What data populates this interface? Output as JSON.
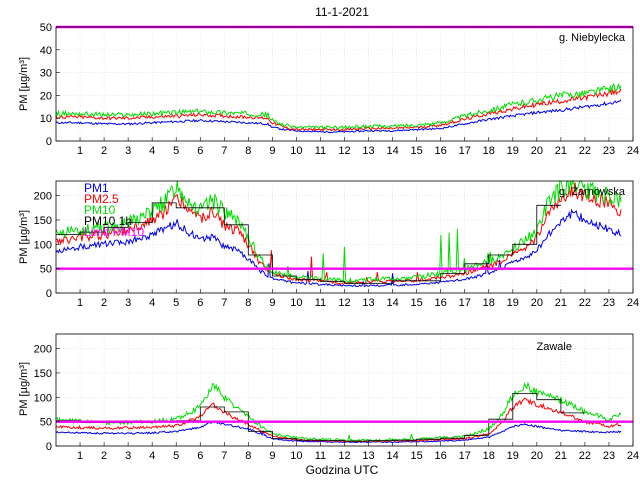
{
  "figure": {
    "title": "11-1-2021",
    "xlabel": "Godzina UTC"
  },
  "chart_data": [
    {
      "type": "line",
      "title": "g. Niebylecka",
      "ylabel": "PM [µg/m³]",
      "xlim": [
        0,
        24
      ],
      "ylim": [
        0,
        50
      ],
      "yticks": [
        0,
        10,
        20,
        30,
        40,
        50
      ],
      "xticks": [
        1,
        2,
        3,
        4,
        5,
        6,
        7,
        8,
        9,
        10,
        11,
        12,
        13,
        14,
        15,
        16,
        17,
        18,
        19,
        20,
        21,
        22,
        23,
        24
      ],
      "grid": true,
      "limit": {
        "value": 50,
        "color": "#ff00ff"
      },
      "series": [
        {
          "id": "pm1",
          "color": "#0000ee",
          "x": [
            0,
            1,
            2,
            3,
            4,
            5,
            6,
            7,
            8,
            8.8,
            9,
            9.5,
            10,
            11,
            12,
            13,
            14,
            15,
            16,
            17,
            18,
            19,
            20,
            21,
            22,
            23,
            23.5
          ],
          "values": [
            8,
            8,
            7.5,
            7.5,
            8,
            8.5,
            9,
            8.5,
            8,
            7.5,
            6,
            5,
            4.5,
            4,
            4,
            4.5,
            4.5,
            5,
            5.5,
            7.5,
            9.5,
            11,
            12.5,
            13.5,
            15,
            16.5,
            17.5
          ]
        },
        {
          "id": "pm25",
          "color": "#ff0000",
          "x": [
            0,
            1,
            2,
            3,
            4,
            5,
            6,
            7,
            8,
            8.8,
            9,
            9.5,
            10,
            11,
            12,
            13,
            14,
            15,
            16,
            17,
            18,
            19,
            20,
            21,
            22,
            23,
            23.5
          ],
          "values": [
            10.5,
            10.5,
            10,
            10,
            10.5,
            11,
            11.5,
            11,
            10.5,
            10,
            8,
            6,
            5,
            5,
            5,
            5.5,
            5.5,
            6,
            7,
            9.5,
            12,
            14,
            16,
            17.5,
            19,
            21,
            22
          ]
        },
        {
          "id": "pm10",
          "color": "#00dd00",
          "x": [
            0,
            1,
            2,
            3,
            4,
            5,
            6,
            7,
            8,
            8.8,
            9,
            9.5,
            10,
            11,
            12,
            13,
            14,
            15,
            16,
            17,
            18,
            19,
            20,
            21,
            22,
            23,
            23.5
          ],
          "values": [
            12,
            12,
            11.5,
            11.5,
            12,
            12.5,
            13,
            12.5,
            12,
            11.5,
            9,
            7,
            6,
            6,
            6,
            6.5,
            6.5,
            7,
            8,
            11,
            13.5,
            16,
            18,
            20,
            21,
            23,
            24
          ]
        }
      ],
      "steps": []
    },
    {
      "type": "line",
      "title": "g. Żarnowska",
      "ylabel": "PM [µg/m³]",
      "xlim": [
        0,
        24
      ],
      "ylim": [
        0,
        230
      ],
      "yticks": [
        0,
        50,
        100,
        150,
        200
      ],
      "xticks": [
        1,
        2,
        3,
        4,
        5,
        6,
        7,
        8,
        9,
        10,
        11,
        12,
        13,
        14,
        15,
        16,
        17,
        18,
        19,
        20,
        21,
        22,
        23,
        24
      ],
      "grid": true,
      "limit": {
        "value": 50,
        "color": "#ff00ff"
      },
      "legend": {
        "placement": "top-left",
        "entries": [
          {
            "label": "PM1",
            "color": "#0000ee"
          },
          {
            "label": "PM2.5",
            "color": "#ff0000"
          },
          {
            "label": "PM10",
            "color": "#00dd00"
          },
          {
            "label": "PM10 1h",
            "color": "#000000"
          },
          {
            "label": "Limit PM10",
            "color": "#ff00ff"
          }
        ]
      },
      "series": [
        {
          "id": "pm1",
          "color": "#0000ee",
          "x": [
            0,
            1,
            2,
            3,
            4,
            4.5,
            5,
            5.5,
            6,
            6.5,
            7,
            7.5,
            8,
            8.5,
            9,
            10,
            11,
            12,
            13,
            14,
            15,
            16,
            17,
            18,
            18.5,
            19,
            19.5,
            20,
            20.5,
            21,
            21.5,
            22,
            22.5,
            23,
            23.5
          ],
          "values": [
            85,
            95,
            100,
            105,
            120,
            130,
            145,
            125,
            110,
            115,
            95,
            90,
            70,
            45,
            30,
            20,
            18,
            15,
            15,
            16,
            18,
            22,
            28,
            40,
            50,
            65,
            70,
            90,
            120,
            150,
            165,
            150,
            140,
            130,
            120
          ]
        },
        {
          "id": "pm25",
          "color": "#ff0000",
          "x": [
            0,
            1,
            2,
            3,
            4,
            4.5,
            5,
            5.5,
            6,
            6.5,
            7,
            7.5,
            8,
            8.5,
            9,
            10,
            11,
            12,
            13,
            14,
            15,
            16,
            17,
            18,
            18.5,
            19,
            19.5,
            20,
            20.5,
            21,
            21.5,
            22,
            22.5,
            23,
            23.5
          ],
          "values": [
            105,
            115,
            120,
            130,
            150,
            165,
            195,
            170,
            150,
            165,
            140,
            130,
            100,
            60,
            40,
            28,
            25,
            20,
            22,
            24,
            26,
            32,
            40,
            55,
            65,
            80,
            90,
            115,
            160,
            195,
            215,
            200,
            190,
            185,
            170
          ]
        },
        {
          "id": "pm10",
          "color": "#00dd00",
          "x": [
            0,
            1,
            2,
            3,
            4,
            4.5,
            5,
            5.5,
            6,
            6.5,
            7,
            7.5,
            8,
            8.5,
            9,
            10,
            11,
            12,
            13,
            14,
            15,
            16,
            17,
            18,
            18.5,
            19,
            19.5,
            20,
            20.5,
            21,
            21.5,
            22,
            22.5,
            23,
            23.5
          ],
          "values": [
            120,
            130,
            135,
            145,
            170,
            185,
            225,
            195,
            170,
            190,
            165,
            150,
            115,
            70,
            45,
            33,
            30,
            25,
            28,
            30,
            32,
            40,
            50,
            65,
            75,
            95,
            105,
            130,
            185,
            215,
            230,
            215,
            205,
            200,
            185
          ]
        }
      ],
      "steps": [
        {
          "x0": 0,
          "x1": 1,
          "y": 120
        },
        {
          "x0": 1,
          "x1": 2,
          "y": 125
        },
        {
          "x0": 2,
          "x1": 3,
          "y": 135
        },
        {
          "x0": 3,
          "x1": 4,
          "y": 145
        },
        {
          "x0": 4,
          "x1": 5,
          "y": 185
        },
        {
          "x0": 5,
          "x1": 6,
          "y": 175
        },
        {
          "x0": 6,
          "x1": 7,
          "y": 175
        },
        {
          "x0": 7,
          "x1": 8,
          "y": 140
        },
        {
          "x0": 8,
          "x1": 9,
          "y": 78
        },
        {
          "x0": 9,
          "x1": 10,
          "y": 35
        },
        {
          "x0": 10,
          "x1": 11,
          "y": 28
        },
        {
          "x0": 11,
          "x1": 12,
          "y": 24
        },
        {
          "x0": 12,
          "x1": 13,
          "y": 20
        },
        {
          "x0": 13,
          "x1": 14,
          "y": 20
        },
        {
          "x0": 14,
          "x1": 15,
          "y": 25
        },
        {
          "x0": 15,
          "x1": 16,
          "y": 25
        },
        {
          "x0": 16,
          "x1": 17,
          "y": 40
        },
        {
          "x0": 17,
          "x1": 18,
          "y": 60
        },
        {
          "x0": 18,
          "x1": 19,
          "y": 78
        },
        {
          "x0": 19,
          "x1": 20,
          "y": 100
        },
        {
          "x0": 20,
          "x1": 21,
          "y": 180
        }
      ]
    },
    {
      "type": "line",
      "title": "Zawale",
      "ylabel": "PM [µg/m³]",
      "xlim": [
        0,
        24
      ],
      "ylim": [
        0,
        230
      ],
      "yticks": [
        0,
        50,
        100,
        150,
        200
      ],
      "xticks": [
        1,
        2,
        3,
        4,
        5,
        6,
        7,
        8,
        9,
        10,
        11,
        12,
        13,
        14,
        15,
        16,
        17,
        18,
        19,
        20,
        21,
        22,
        23,
        24
      ],
      "grid": true,
      "limit": {
        "value": 50,
        "color": "#ff00ff"
      },
      "series": [
        {
          "id": "pm1",
          "color": "#0000ee",
          "x": [
            0,
            1,
            2,
            3,
            4,
            5,
            6,
            6.5,
            7,
            7.5,
            8,
            8.5,
            9,
            10,
            11,
            12,
            13,
            14,
            15,
            16,
            17,
            18,
            18.5,
            19,
            19.5,
            20,
            21,
            22,
            23,
            23.5
          ],
          "values": [
            28,
            27,
            26,
            26,
            27,
            30,
            38,
            50,
            45,
            40,
            35,
            25,
            15,
            10,
            9,
            8,
            8,
            8,
            9,
            10,
            12,
            18,
            28,
            40,
            45,
            40,
            32,
            30,
            28,
            30
          ]
        },
        {
          "id": "pm25",
          "color": "#ff0000",
          "x": [
            0,
            1,
            2,
            3,
            4,
            5,
            6,
            6.5,
            7,
            7.5,
            8,
            8.5,
            9,
            10,
            11,
            12,
            13,
            14,
            15,
            16,
            17,
            18,
            18.5,
            19,
            19.5,
            20,
            21,
            22,
            23,
            23.5
          ],
          "values": [
            40,
            38,
            37,
            37,
            38,
            42,
            60,
            85,
            70,
            55,
            45,
            32,
            20,
            13,
            11,
            10,
            10,
            10,
            11,
            13,
            15,
            25,
            45,
            80,
            95,
            85,
            70,
            50,
            40,
            45
          ]
        },
        {
          "id": "pm10",
          "color": "#00dd00",
          "x": [
            0,
            1,
            2,
            3,
            4,
            5,
            6,
            6.5,
            7,
            7.5,
            8,
            8.5,
            9,
            10,
            11,
            12,
            13,
            14,
            15,
            16,
            17,
            18,
            18.5,
            19,
            19.5,
            20,
            21,
            22,
            23,
            23.5
          ],
          "values": [
            55,
            50,
            48,
            48,
            50,
            55,
            80,
            125,
            100,
            80,
            60,
            42,
            25,
            17,
            14,
            12,
            12,
            13,
            14,
            17,
            20,
            35,
            60,
            105,
            125,
            110,
            95,
            70,
            55,
            65
          ]
        }
      ],
      "steps": [
        {
          "x0": 0,
          "x1": 1,
          "y": 52
        },
        {
          "x0": 1,
          "x1": 2,
          "y": 48
        },
        {
          "x0": 2,
          "x1": 3,
          "y": 48
        },
        {
          "x0": 3,
          "x1": 4,
          "y": 48
        },
        {
          "x0": 4,
          "x1": 5,
          "y": 50
        },
        {
          "x0": 5,
          "x1": 6,
          "y": 52
        },
        {
          "x0": 6,
          "x1": 7,
          "y": 80
        },
        {
          "x0": 7,
          "x1": 8,
          "y": 70
        },
        {
          "x0": 8,
          "x1": 9,
          "y": 30
        },
        {
          "x0": 9,
          "x1": 10,
          "y": 15
        },
        {
          "x0": 10,
          "x1": 11,
          "y": 12
        },
        {
          "x0": 11,
          "x1": 12,
          "y": 11
        },
        {
          "x0": 12,
          "x1": 13,
          "y": 10
        },
        {
          "x0": 13,
          "x1": 14,
          "y": 11
        },
        {
          "x0": 14,
          "x1": 15,
          "y": 12
        },
        {
          "x0": 15,
          "x1": 16,
          "y": 14
        },
        {
          "x0": 16,
          "x1": 17,
          "y": 16
        },
        {
          "x0": 17,
          "x1": 18,
          "y": 22
        },
        {
          "x0": 18,
          "x1": 19,
          "y": 55
        },
        {
          "x0": 19,
          "x1": 20,
          "y": 108
        },
        {
          "x0": 20,
          "x1": 21,
          "y": 95
        },
        {
          "x0": 21,
          "x1": 22,
          "y": 68
        }
      ]
    }
  ]
}
